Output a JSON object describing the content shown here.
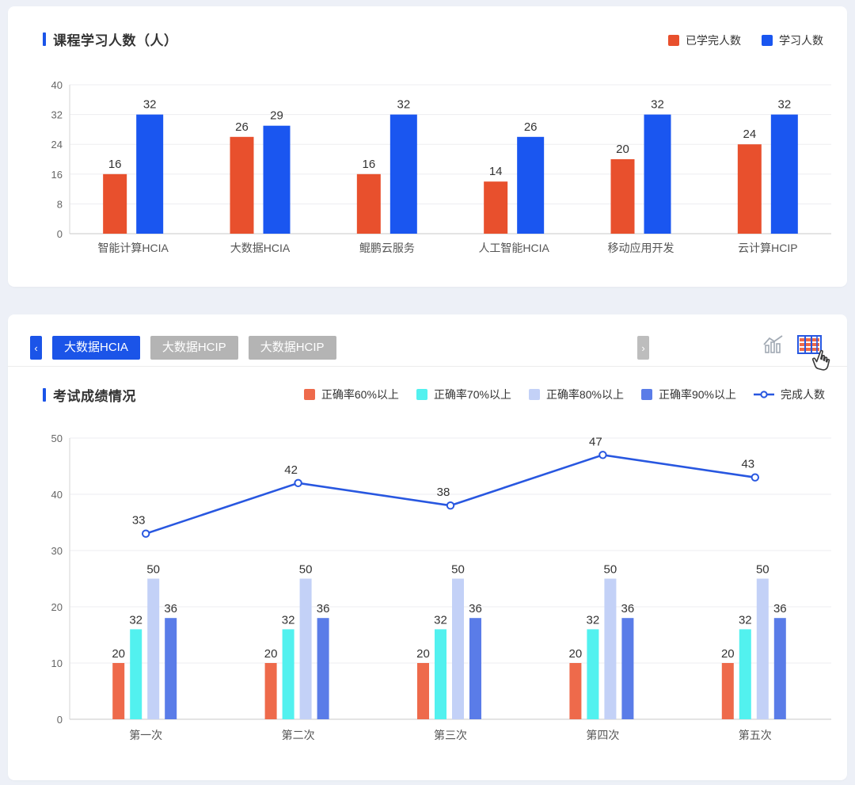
{
  "top_panel": {
    "title": "课程学习人数（人）"
  },
  "bottom_panel": {
    "title": "考试成绩情况",
    "tabs": {
      "prev_label": "‹",
      "next_label": "›",
      "items": [
        {
          "label": "大数据HCIA",
          "active": true
        },
        {
          "label": "大数据HCIP",
          "active": false
        },
        {
          "label": "大数据HCIP",
          "active": false
        }
      ]
    },
    "toolbar": {
      "icons": [
        "trend-chart-icon",
        "table-view-icon"
      ],
      "cursor": "hand-pointer-cursor"
    }
  },
  "colors": {
    "accent_blue": "#1b54e8",
    "inactive_gray": "#b4b4b4",
    "axis": "#cccccc",
    "gridline": "#ededf0"
  },
  "chart_data": [
    {
      "type": "bar",
      "title": "课程学习人数（人）",
      "categories": [
        "智能计算HCIA",
        "大数据HCIA",
        "鲲鹏云服务",
        "人工智能HCIA",
        "移动应用开发",
        "云计算HCIP"
      ],
      "series": [
        {
          "name": "已学完人数",
          "color": "#e8502d",
          "values": [
            16,
            26,
            16,
            14,
            20,
            24
          ]
        },
        {
          "name": "学习人数",
          "color": "#1a56f0",
          "values": [
            32,
            29,
            32,
            26,
            32,
            32
          ]
        }
      ],
      "ylim": [
        0,
        40
      ],
      "yticks": [
        0,
        8,
        16,
        24,
        32,
        40
      ],
      "grid": true,
      "legend_position": "top-right"
    },
    {
      "type": "bar+line",
      "title": "考试成绩情况",
      "categories": [
        "第一次",
        "第二次",
        "第三次",
        "第四次",
        "第五次"
      ],
      "bar_series": [
        {
          "name": "正确率60%以上",
          "color": "#ee6a4b",
          "values": [
            20,
            20,
            20,
            20,
            20
          ]
        },
        {
          "name": "正确率70%以上",
          "color": "#52f1ef",
          "values": [
            32,
            32,
            32,
            32,
            32
          ]
        },
        {
          "name": "正确率80%以上",
          "color": "#c3d1f7",
          "values": [
            50,
            50,
            50,
            50,
            50
          ]
        },
        {
          "name": "正确率90%以上",
          "color": "#5a7ce8",
          "values": [
            36,
            36,
            36,
            36,
            36
          ]
        }
      ],
      "line_series": {
        "name": "完成人数",
        "color": "#2857e0",
        "values": [
          33,
          42,
          38,
          47,
          43
        ]
      },
      "ylim": [
        0,
        50
      ],
      "yticks": [
        0,
        10,
        20,
        30,
        40,
        50
      ],
      "bar_axis_max": 100,
      "grid": true,
      "legend_position": "top"
    }
  ]
}
